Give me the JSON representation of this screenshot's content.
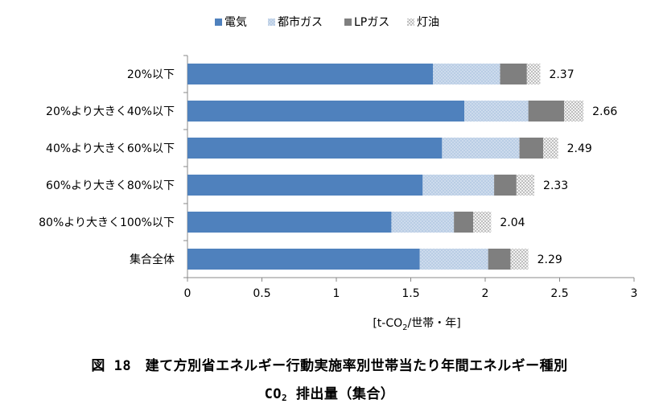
{
  "chart_data": {
    "type": "bar",
    "orientation": "horizontal",
    "stacked": true,
    "categories": [
      "20%以下",
      "20%より大きく40%以下",
      "40%より大きく60%以下",
      "60%より大きく80%以下",
      "80%より大きく100%以下",
      "集合全体"
    ],
    "series": [
      {
        "name": "電気",
        "color": "#4f81bd",
        "pattern": "solid",
        "values": [
          1.65,
          1.86,
          1.71,
          1.58,
          1.37,
          1.56
        ]
      },
      {
        "name": "都市ガス",
        "color": "#b9cde5",
        "pattern": "dots",
        "values": [
          0.45,
          0.43,
          0.52,
          0.48,
          0.42,
          0.46
        ]
      },
      {
        "name": "LPガス",
        "color": "#7f7f7f",
        "pattern": "solid",
        "values": [
          0.18,
          0.24,
          0.16,
          0.15,
          0.13,
          0.15
        ]
      },
      {
        "name": "灯油",
        "color": "#d9d9d9",
        "pattern": "checker",
        "values": [
          0.09,
          0.13,
          0.1,
          0.12,
          0.12,
          0.12
        ]
      }
    ],
    "totals": [
      "2.37",
      "2.66",
      "2.49",
      "2.33",
      "2.04",
      "2.29"
    ],
    "xlim": [
      0,
      3
    ],
    "xticks": [
      "0",
      "0.5",
      "1",
      "1.5",
      "2",
      "2.5",
      "3"
    ],
    "xlabel": "[t-CO2/世帯・年]",
    "legend_position": "top",
    "grid": false
  },
  "caption": {
    "line1": "図 18　建て方別省エネルギー行動実施率別世帯当たり年間エネルギー種別",
    "line2_prefix": "CO",
    "line2_sub": "2",
    "line2_suffix": " 排出量（集合）"
  }
}
